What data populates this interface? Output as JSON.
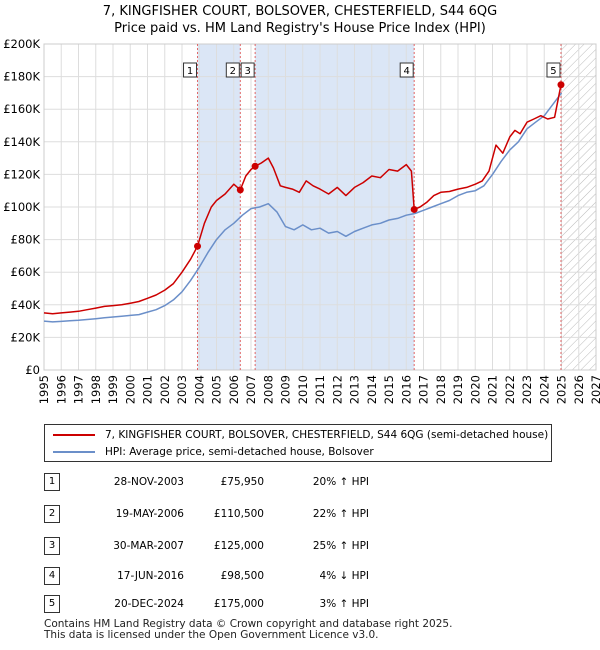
{
  "title": {
    "line1": "7, KINGFISHER COURT, BOLSOVER, CHESTERFIELD, S44 6QG",
    "line2": "Price paid vs. HM Land Registry's House Price Index (HPI)"
  },
  "chart_data": {
    "type": "line",
    "title": "7, KINGFISHER COURT, BOLSOVER, CHESTERFIELD, S44 6QG",
    "subtitle": "Price paid vs. HM Land Registry's House Price Index (HPI)",
    "xlabel": "",
    "ylabel": "",
    "xlim": [
      1995,
      2027
    ],
    "ylim": [
      0,
      200000
    ],
    "y_ticks": [
      0,
      20000,
      40000,
      60000,
      80000,
      100000,
      120000,
      140000,
      160000,
      180000,
      200000
    ],
    "y_tick_labels": [
      "£0",
      "£20K",
      "£40K",
      "£60K",
      "£80K",
      "£100K",
      "£120K",
      "£140K",
      "£160K",
      "£180K",
      "£200K"
    ],
    "x_ticks": [
      1995,
      1996,
      1997,
      1998,
      1999,
      2000,
      2001,
      2002,
      2003,
      2004,
      2005,
      2006,
      2007,
      2008,
      2009,
      2010,
      2011,
      2012,
      2013,
      2014,
      2015,
      2016,
      2017,
      2018,
      2019,
      2020,
      2021,
      2022,
      2023,
      2024,
      2025,
      2026,
      2027
    ],
    "x_tick_labels": [
      "1995",
      "1996",
      "1997",
      "1998",
      "1999",
      "2000",
      "2001",
      "2002",
      "2003",
      "2004",
      "2005",
      "2006",
      "2007",
      "2008",
      "2009",
      "2010",
      "2011",
      "2012",
      "2013",
      "2014",
      "2015",
      "2016",
      "2017",
      "2018",
      "2019",
      "2020",
      "2021",
      "2022",
      "2023",
      "2024",
      "2025",
      "2026",
      "2027"
    ],
    "grid": true,
    "shaded_ranges": [
      [
        2003.9,
        2006.38
      ],
      [
        2007.24,
        2016.46
      ]
    ],
    "hatched_range": [
      2025.0,
      2027
    ],
    "colors": {
      "property": "#cc0000",
      "hpi": "#6b8fc9",
      "shade": "#dbe6f6",
      "vline": "#e06666",
      "grid": "#dddddd"
    },
    "series": [
      {
        "name": "7, KINGFISHER COURT, BOLSOVER, CHESTERFIELD, S44 6QG (semi-detached house)",
        "color": "#cc0000",
        "x": [
          1995.0,
          1995.5,
          1996.0,
          1996.5,
          1997.0,
          1997.5,
          1998.0,
          1998.5,
          1999.0,
          1999.5,
          2000.0,
          2000.5,
          2001.0,
          2001.5,
          2002.0,
          2002.5,
          2003.0,
          2003.5,
          2003.9,
          2004.3,
          2004.7,
          2005.0,
          2005.5,
          2006.0,
          2006.38,
          2006.7,
          2007.0,
          2007.24,
          2007.6,
          2008.0,
          2008.3,
          2008.7,
          2009.0,
          2009.4,
          2009.8,
          2010.2,
          2010.6,
          2011.0,
          2011.5,
          2012.0,
          2012.5,
          2013.0,
          2013.5,
          2014.0,
          2014.5,
          2015.0,
          2015.5,
          2016.0,
          2016.3,
          2016.46,
          2016.8,
          2017.2,
          2017.6,
          2018.0,
          2018.5,
          2019.0,
          2019.5,
          2020.0,
          2020.4,
          2020.8,
          2021.2,
          2021.6,
          2022.0,
          2022.3,
          2022.6,
          2023.0,
          2023.4,
          2023.8,
          2024.2,
          2024.6,
          2024.97
        ],
        "values": [
          35000,
          34500,
          35000,
          35500,
          36000,
          37000,
          38000,
          39000,
          39500,
          40000,
          41000,
          42000,
          44000,
          46000,
          49000,
          53000,
          60000,
          68000,
          75950,
          90000,
          100000,
          104000,
          108000,
          114000,
          110500,
          119000,
          123000,
          125000,
          127000,
          130000,
          124000,
          113000,
          112000,
          111000,
          109000,
          116000,
          113000,
          111000,
          108000,
          112000,
          107000,
          112000,
          115000,
          119000,
          118000,
          123000,
          122000,
          126000,
          122000,
          98500,
          100000,
          103000,
          107000,
          109000,
          109500,
          111000,
          112000,
          114000,
          116000,
          122000,
          138000,
          133000,
          143000,
          147000,
          145000,
          152000,
          154000,
          156000,
          154000,
          155000,
          175000
        ]
      },
      {
        "name": "HPI: Average price, semi-detached house, Bolsover",
        "color": "#6b8fc9",
        "x": [
          1995.0,
          1995.5,
          1996.0,
          1996.5,
          1997.0,
          1997.5,
          1998.0,
          1998.5,
          1999.0,
          1999.5,
          2000.0,
          2000.5,
          2001.0,
          2001.5,
          2002.0,
          2002.5,
          2003.0,
          2003.5,
          2004.0,
          2004.5,
          2005.0,
          2005.5,
          2006.0,
          2006.5,
          2007.0,
          2007.5,
          2008.0,
          2008.5,
          2009.0,
          2009.5,
          2010.0,
          2010.5,
          2011.0,
          2011.5,
          2012.0,
          2012.5,
          2013.0,
          2013.5,
          2014.0,
          2014.5,
          2015.0,
          2015.5,
          2016.0,
          2016.5,
          2017.0,
          2017.5,
          2018.0,
          2018.5,
          2019.0,
          2019.5,
          2020.0,
          2020.5,
          2021.0,
          2021.5,
          2022.0,
          2022.5,
          2023.0,
          2023.5,
          2024.0,
          2024.5,
          2025.0
        ],
        "values": [
          30000,
          29500,
          29800,
          30200,
          30500,
          31000,
          31500,
          32000,
          32500,
          33000,
          33500,
          34000,
          35500,
          37000,
          39500,
          43000,
          48000,
          55000,
          63000,
          72000,
          80000,
          86000,
          90000,
          95000,
          99000,
          100000,
          102000,
          97000,
          88000,
          86000,
          89000,
          86000,
          87000,
          84000,
          85000,
          82000,
          85000,
          87000,
          89000,
          90000,
          92000,
          93000,
          95000,
          96000,
          98000,
          100000,
          102000,
          104000,
          107000,
          109000,
          110000,
          113000,
          120000,
          128000,
          135000,
          140000,
          148000,
          152000,
          156000,
          163000,
          170000
        ]
      }
    ],
    "sales": [
      {
        "n": "1",
        "x": 2003.9,
        "price": 75950
      },
      {
        "n": "2",
        "x": 2006.38,
        "price": 110500
      },
      {
        "n": "3",
        "x": 2007.24,
        "price": 125000
      },
      {
        "n": "4",
        "x": 2016.46,
        "price": 98500
      },
      {
        "n": "5",
        "x": 2024.97,
        "price": 175000
      }
    ]
  },
  "legend": {
    "property_label": "7, KINGFISHER COURT, BOLSOVER, CHESTERFIELD, S44 6QG (semi-detached house)",
    "hpi_label": "HPI: Average price, semi-detached house, Bolsover"
  },
  "sales_table": [
    {
      "num": "1",
      "date": "28-NOV-2003",
      "price": "£75,950",
      "hpi": "20% ↑ HPI"
    },
    {
      "num": "2",
      "date": "19-MAY-2006",
      "price": "£110,500",
      "hpi": "22% ↑ HPI"
    },
    {
      "num": "3",
      "date": "30-MAR-2007",
      "price": "£125,000",
      "hpi": "25% ↑ HPI"
    },
    {
      "num": "4",
      "date": "17-JUN-2016",
      "price": "£98,500",
      "hpi": "4% ↓ HPI"
    },
    {
      "num": "5",
      "date": "20-DEC-2024",
      "price": "£175,000",
      "hpi": "3% ↑ HPI"
    }
  ],
  "footer": {
    "line1": "Contains HM Land Registry data © Crown copyright and database right 2025.",
    "line2": "This data is licensed under the Open Government Licence v3.0."
  }
}
